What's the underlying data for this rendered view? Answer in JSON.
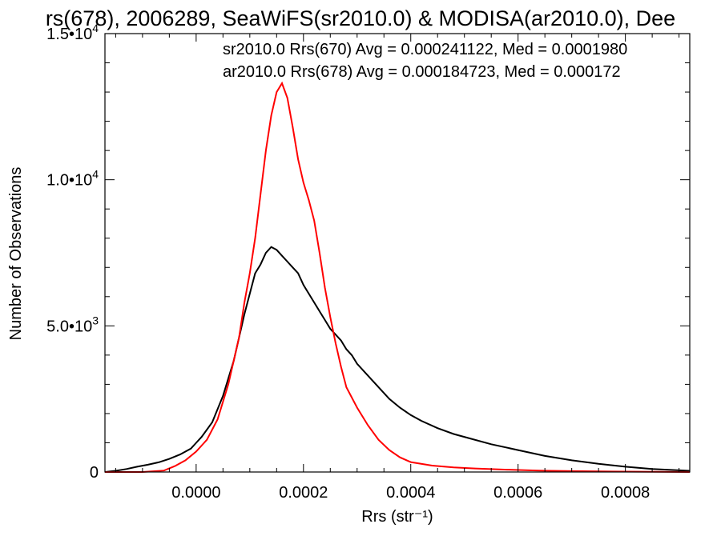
{
  "chart_data": {
    "type": "line",
    "title": "rs(678), 2006289, SeaWiFS(sr2010.0) & MODISA(ar2010.0), Dee",
    "xlabel": "Rrs (str⁻¹)",
    "ylabel": "Number of Observations",
    "xlim": [
      -0.00017,
      0.00092
    ],
    "ylim": [
      0,
      15000
    ],
    "x_ticks": [
      {
        "value": 0.0,
        "label": "0.0000"
      },
      {
        "value": 0.0002,
        "label": "0.0002"
      },
      {
        "value": 0.0004,
        "label": "0.0004"
      },
      {
        "value": 0.0006,
        "label": "0.0006"
      },
      {
        "value": 0.0008,
        "label": "0.0008"
      }
    ],
    "y_ticks": [
      {
        "value": 0,
        "mantissa": "0",
        "exp": ""
      },
      {
        "value": 5000,
        "mantissa": "5.0•10",
        "exp": "3"
      },
      {
        "value": 10000,
        "mantissa": "1.0•10",
        "exp": "4"
      },
      {
        "value": 15000,
        "mantissa": "1.5•10",
        "exp": "4"
      }
    ],
    "legend_placement": "top-right",
    "grid": false,
    "series": [
      {
        "name": "sr2010.0 Rrs(670) Avg = 0.000241122, Med = 0.0001980",
        "color": "#000000",
        "x": [
          -0.00017,
          -0.00015,
          -0.00013,
          -0.00011,
          -9e-05,
          -7e-05,
          -5e-05,
          -3e-05,
          -1e-05,
          0.0,
          1e-05,
          3e-05,
          5e-05,
          7e-05,
          9e-05,
          0.0001,
          0.00011,
          0.00012,
          0.00013,
          0.00014,
          0.00015,
          0.00016,
          0.00017,
          0.00018,
          0.00019,
          0.0002,
          0.00021,
          0.00022,
          0.00023,
          0.00024,
          0.00025,
          0.00026,
          0.00027,
          0.00028,
          0.00029,
          0.0003,
          0.00032,
          0.00034,
          0.00036,
          0.00038,
          0.0004,
          0.00042,
          0.00045,
          0.00048,
          0.00051,
          0.00055,
          0.0006,
          0.00065,
          0.0007,
          0.00075,
          0.0008,
          0.00085,
          0.00092
        ],
        "y": [
          0,
          40,
          100,
          180,
          250,
          330,
          450,
          600,
          800,
          1000,
          1200,
          1700,
          2600,
          3800,
          5400,
          6100,
          6800,
          7100,
          7500,
          7700,
          7600,
          7400,
          7200,
          7000,
          6800,
          6400,
          6100,
          5800,
          5500,
          5200,
          4900,
          4700,
          4500,
          4200,
          4000,
          3700,
          3300,
          2900,
          2500,
          2200,
          1950,
          1750,
          1500,
          1300,
          1150,
          950,
          750,
          550,
          400,
          280,
          180,
          100,
          40
        ]
      },
      {
        "name": "ar2010.0 Rrs(678) Avg = 0.000184723, Med = 0.000172",
        "color": "#ff0000",
        "x": [
          -0.00017,
          -0.0001,
          -6e-05,
          -4e-05,
          -2e-05,
          0.0,
          2e-05,
          4e-05,
          6e-05,
          8e-05,
          9e-05,
          0.0001,
          0.00011,
          0.00012,
          0.00013,
          0.00014,
          0.00015,
          0.00016,
          0.00017,
          0.00018,
          0.00019,
          0.0002,
          0.00021,
          0.00022,
          0.00023,
          0.00024,
          0.00025,
          0.00026,
          0.00027,
          0.00028,
          0.0003,
          0.00032,
          0.00034,
          0.00036,
          0.00038,
          0.0004,
          0.00044,
          0.00048,
          0.00052,
          0.00058,
          0.00064,
          0.0007,
          0.0008,
          0.00092
        ],
        "y": [
          0,
          0,
          50,
          200,
          400,
          700,
          1100,
          1800,
          3000,
          4600,
          5800,
          6800,
          8000,
          9500,
          11000,
          12200,
          13000,
          13300,
          12800,
          11800,
          10700,
          9900,
          9300,
          8600,
          7500,
          6300,
          5300,
          4400,
          3600,
          2900,
          2200,
          1600,
          1100,
          750,
          500,
          340,
          220,
          160,
          120,
          80,
          50,
          30,
          15,
          0
        ]
      }
    ]
  }
}
